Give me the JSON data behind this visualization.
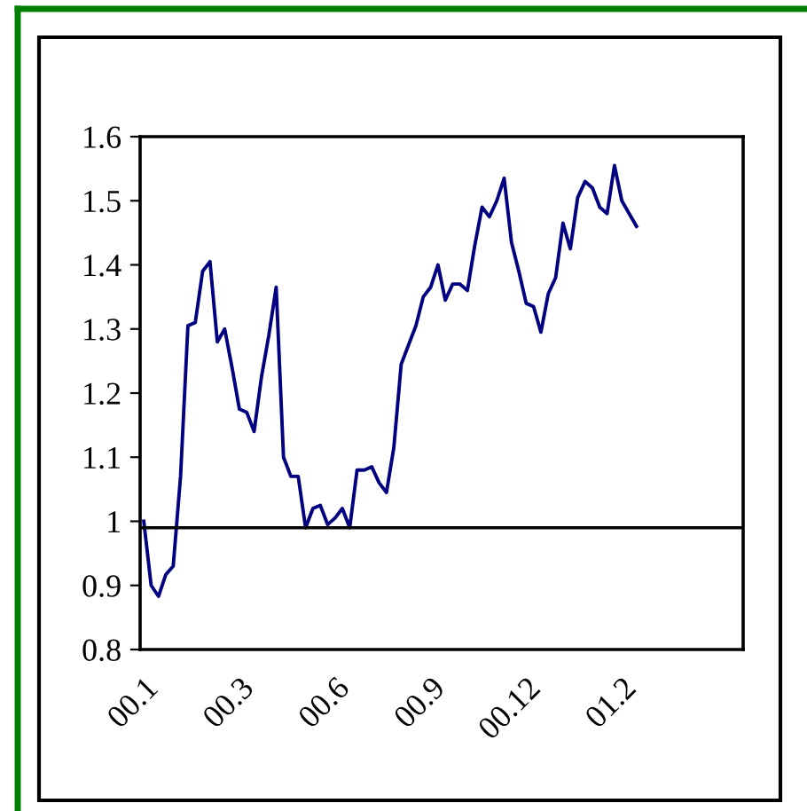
{
  "chart_data": {
    "type": "line",
    "categories": [
      "00.1",
      null,
      null,
      null,
      null,
      null,
      null,
      null,
      null,
      null,
      null,
      null,
      null,
      "00.3",
      null,
      null,
      null,
      null,
      null,
      null,
      null,
      null,
      null,
      null,
      null,
      null,
      "00.6",
      null,
      null,
      null,
      null,
      null,
      null,
      null,
      null,
      null,
      null,
      null,
      null,
      "00.9",
      null,
      null,
      null,
      null,
      null,
      null,
      null,
      null,
      null,
      null,
      null,
      null,
      "00.12",
      null,
      null,
      null,
      null,
      null,
      null,
      null,
      null,
      null,
      null,
      null,
      null,
      "01.2",
      null,
      null,
      null,
      null,
      null,
      null,
      null,
      null,
      null,
      null,
      null,
      null,
      null,
      null,
      null,
      null
    ],
    "series": [
      {
        "color": "#000080",
        "values": [
          1.0,
          0.9,
          0.883,
          0.917,
          0.93,
          1.07,
          1.305,
          1.31,
          1.39,
          1.405,
          1.28,
          1.3,
          1.24,
          1.175,
          1.17,
          1.14,
          1.225,
          1.29,
          1.365,
          1.1,
          1.07,
          1.07,
          0.99,
          1.02,
          1.025,
          0.995,
          1.005,
          1.02,
          0.99,
          1.08,
          1.08,
          1.085,
          1.06,
          1.045,
          1.115,
          1.245,
          1.275,
          1.305,
          1.35,
          1.365,
          1.4,
          1.345,
          1.37,
          1.37,
          1.36,
          1.43,
          1.49,
          1.475,
          1.5,
          1.535,
          1.435,
          1.39,
          1.34,
          1.335,
          1.295,
          1.355,
          1.38,
          1.465,
          1.425,
          1.505,
          1.53,
          1.52,
          1.49,
          1.48,
          1.555,
          1.5,
          1.48,
          1.46,
          null,
          null,
          null,
          null,
          null,
          null,
          null,
          null,
          null,
          null,
          null,
          null,
          null,
          null
        ]
      }
    ],
    "ylim": [
      0.8,
      1.6
    ],
    "yticks": [
      0.8,
      0.9,
      1,
      1.1,
      1.2,
      1.3,
      1.4,
      1.5,
      1.6
    ],
    "ref_lines": [
      {
        "axis": "y",
        "value": 0.99,
        "color": "#000000"
      }
    ],
    "marker": "none",
    "line_style": "solid"
  }
}
